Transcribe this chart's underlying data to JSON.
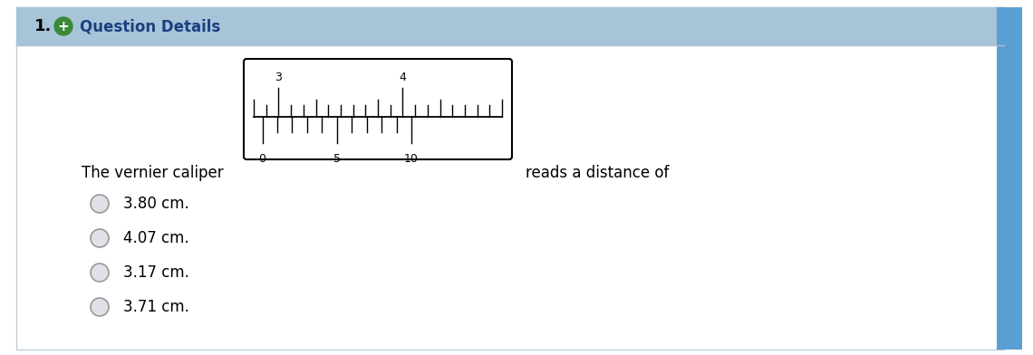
{
  "header_bg": "#a8c4d8",
  "header_text": "Question Details",
  "header_number": "1.",
  "header_plus_color": "#3a8a3a",
  "page_bg": "#ffffff",
  "question_text": "The vernier caliper",
  "question_text2": "reads a distance of",
  "options": [
    "3.80 cm.",
    "4.07 cm.",
    "3.17 cm.",
    "3.71 cm."
  ],
  "main_scale_labels": [
    "3",
    "4"
  ],
  "vernier_scale_labels": [
    "0",
    "5",
    "10"
  ],
  "text_color": "#000000",
  "right_bar_color": "#5a9fd4",
  "outer_border_color": "#c0ccd8",
  "header_border_bottom": "#b0c0d0"
}
